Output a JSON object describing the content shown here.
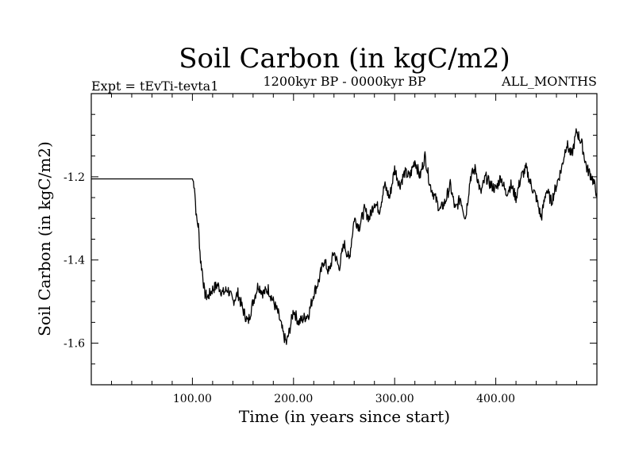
{
  "chart_data": {
    "type": "line",
    "title": "Soil Carbon (in kgC/m2)",
    "left_subtitle": "Expt = tEvTi-tevta1",
    "center_subtitle": "1200kyr BP - 0000kyr BP",
    "right_subtitle": "ALL_MONTHS",
    "xlabel": "Time (in years since start)",
    "ylabel": "Soil Carbon (in kgC/m2)",
    "xlim": [
      0,
      500
    ],
    "ylim": [
      -1.7,
      -1.0
    ],
    "x_ticks": [
      100,
      200,
      300,
      400
    ],
    "x_tick_labels": [
      "100.00",
      "200.00",
      "300.00",
      "400.00"
    ],
    "y_ticks": [
      -1.2,
      -1.4,
      -1.6
    ],
    "y_tick_labels": [
      "-1.2",
      "-1.4",
      "-1.6"
    ],
    "grid": false,
    "series": [
      {
        "name": "Soil Carbon",
        "x": [
          0,
          20,
          40,
          60,
          80,
          100,
          102,
          104,
          106,
          108,
          110,
          112,
          115,
          120,
          125,
          130,
          135,
          140,
          145,
          150,
          155,
          160,
          165,
          170,
          175,
          180,
          185,
          190,
          193,
          196,
          200,
          205,
          210,
          215,
          220,
          225,
          230,
          235,
          240,
          245,
          250,
          255,
          260,
          265,
          270,
          275,
          280,
          285,
          290,
          295,
          300,
          305,
          310,
          315,
          320,
          325,
          330,
          335,
          340,
          345,
          350,
          355,
          360,
          365,
          370,
          375,
          380,
          385,
          390,
          395,
          400,
          405,
          410,
          415,
          420,
          425,
          430,
          435,
          440,
          445,
          450,
          455,
          460,
          465,
          470,
          475,
          480,
          485,
          490,
          495,
          500
        ],
        "values": [
          -1.205,
          -1.205,
          -1.205,
          -1.205,
          -1.205,
          -1.205,
          -1.22,
          -1.3,
          -1.32,
          -1.4,
          -1.43,
          -1.48,
          -1.49,
          -1.47,
          -1.46,
          -1.48,
          -1.47,
          -1.5,
          -1.48,
          -1.52,
          -1.55,
          -1.5,
          -1.46,
          -1.48,
          -1.47,
          -1.5,
          -1.53,
          -1.58,
          -1.6,
          -1.57,
          -1.52,
          -1.55,
          -1.54,
          -1.53,
          -1.48,
          -1.45,
          -1.4,
          -1.43,
          -1.38,
          -1.42,
          -1.36,
          -1.4,
          -1.3,
          -1.32,
          -1.28,
          -1.3,
          -1.26,
          -1.28,
          -1.22,
          -1.25,
          -1.18,
          -1.22,
          -1.19,
          -1.2,
          -1.16,
          -1.2,
          -1.15,
          -1.22,
          -1.25,
          -1.28,
          -1.26,
          -1.22,
          -1.28,
          -1.25,
          -1.3,
          -1.2,
          -1.18,
          -1.24,
          -1.2,
          -1.22,
          -1.23,
          -1.2,
          -1.24,
          -1.22,
          -1.25,
          -1.2,
          -1.18,
          -1.22,
          -1.25,
          -1.3,
          -1.23,
          -1.26,
          -1.22,
          -1.18,
          -1.12,
          -1.15,
          -1.09,
          -1.12,
          -1.18,
          -1.2,
          -1.24
        ]
      }
    ]
  }
}
